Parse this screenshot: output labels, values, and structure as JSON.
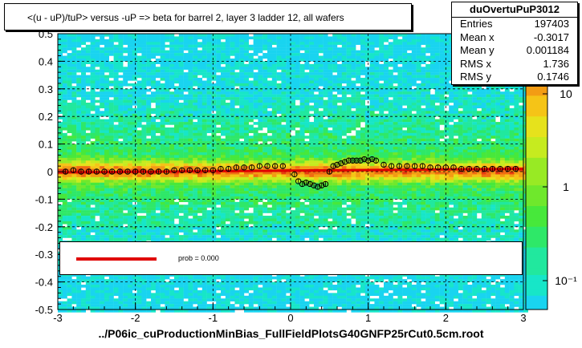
{
  "title": "<(u - uP)/tuP> versus  -uP => beta for barrel 2, layer 3 ladder 12, all wafers",
  "stats": {
    "name": "duOvertuPuP3012",
    "rows": [
      {
        "key": "Entries",
        "value": "197403"
      },
      {
        "key": "Mean x",
        "value": "-0.3017"
      },
      {
        "key": "Mean y",
        "value": "0.001184"
      },
      {
        "key": "RMS x",
        "value": "1.736"
      },
      {
        "key": "RMS y",
        "value": "0.1746"
      }
    ]
  },
  "legend": {
    "fit_label": "prob = 0.000",
    "fit_color": "#e00000"
  },
  "footer": "../P06ic_cuProductionMinBias_FullFieldPlotsG40GNFP25rCut0.5cm.root",
  "chart_data": {
    "type": "heatmap",
    "title": "<(u - uP)/tuP> versus  -uP => beta for barrel 2, layer 3 ladder 12, all wafers",
    "xlim": [
      -3,
      3
    ],
    "ylim": [
      -0.5,
      0.5
    ],
    "x_ticks": [
      "-3",
      "-2",
      "-1",
      "0",
      "1",
      "2",
      "3"
    ],
    "y_ticks": [
      "-0.5",
      "-0.4",
      "-0.3",
      "-0.2",
      "-0.1",
      "0",
      "0.1",
      "0.2",
      "0.3",
      "0.4",
      "0.5"
    ],
    "z_scale": "log",
    "colorbar_ticks": [
      "10",
      "1",
      "10⁻¹"
    ],
    "grid": true,
    "profile": {
      "x": [
        -2.9,
        -2.8,
        -2.7,
        -2.6,
        -2.5,
        -2.4,
        -2.3,
        -2.2,
        -2.1,
        -2.0,
        -1.9,
        -1.8,
        -1.7,
        -1.6,
        -1.5,
        -1.4,
        -1.3,
        -1.2,
        -1.1,
        -1.0,
        -0.9,
        -0.8,
        -0.7,
        -0.6,
        -0.5,
        -0.4,
        -0.3,
        -0.2,
        -0.1,
        0.05,
        0.1,
        0.15,
        0.2,
        0.25,
        0.3,
        0.35,
        0.4,
        0.45,
        0.5,
        0.55,
        0.6,
        0.65,
        0.7,
        0.75,
        0.8,
        0.85,
        0.9,
        0.95,
        1.0,
        1.05,
        1.1,
        1.2,
        1.3,
        1.4,
        1.5,
        1.6,
        1.7,
        1.8,
        1.9,
        2.0,
        2.1,
        2.2,
        2.3,
        2.4,
        2.5,
        2.6,
        2.7,
        2.8,
        2.9
      ],
      "y": [
        0.0,
        0.005,
        0.0,
        0.0,
        0.0,
        0.0,
        0.0,
        0.0,
        0.0,
        0.0,
        0.0,
        0.0,
        0.0,
        0.0,
        0.005,
        0.005,
        0.005,
        0.005,
        0.005,
        0.005,
        0.01,
        0.01,
        0.015,
        0.015,
        0.015,
        0.02,
        0.02,
        0.02,
        0.02,
        -0.01,
        -0.035,
        -0.045,
        -0.04,
        -0.045,
        -0.05,
        -0.055,
        -0.05,
        -0.045,
        0.0,
        0.02,
        0.025,
        0.03,
        0.035,
        0.04,
        0.04,
        0.04,
        0.04,
        0.045,
        0.04,
        0.045,
        0.04,
        0.025,
        0.02,
        0.02,
        0.02,
        0.02,
        0.02,
        0.015,
        0.015,
        0.015,
        0.015,
        0.01,
        0.01,
        0.01,
        0.01,
        0.01,
        0.01,
        0.01,
        0.01
      ]
    },
    "fit": {
      "x": [
        -3,
        3
      ],
      "y": [
        -0.003,
        0.01
      ]
    }
  }
}
